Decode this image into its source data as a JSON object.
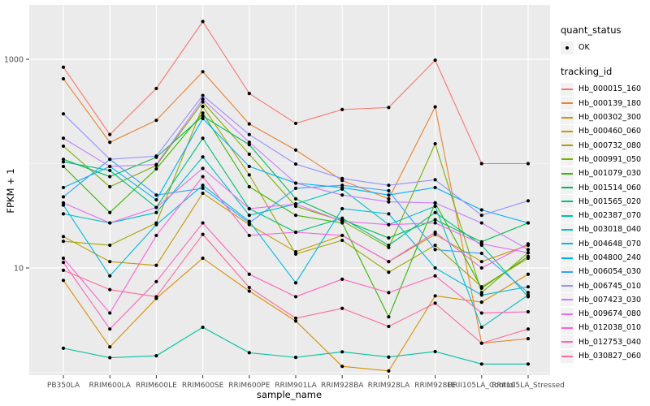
{
  "chart_data": {
    "type": "line",
    "title": "",
    "xlabel": "sample_name",
    "ylabel": "FPKM + 1",
    "y_scale": "log10",
    "ylim": [
      0.94,
      3200
    ],
    "grid": "on",
    "legend_position": "right",
    "panel_color": "#EBEBEB",
    "grid_color": "#FFFFFF",
    "point_color": "#000000",
    "tick_text_color": "#4D4D4D",
    "y_ticks": [
      {
        "value": 10,
        "label": "10"
      },
      {
        "value": 1000,
        "label": "1000"
      }
    ],
    "y_minor": [
      1,
      100
    ],
    "categories": [
      "PB350LA",
      "RRIM600LA",
      "RRIM600LE",
      "RRIM600SE",
      "RRIM600PE",
      "RRIM901LA",
      "RRIM928BA",
      "RRIM928LA",
      "RRIM928LE",
      "RRII105LA_Control",
      "RRII105LA_Stressed"
    ],
    "series": [
      {
        "name": "Hb_000015_160",
        "color": "#F8766D",
        "values": [
          840,
          190,
          525,
          2300,
          470,
          243,
          330,
          345,
          980,
          100,
          100
        ]
      },
      {
        "name": "Hb_000139_180",
        "color": "#EA8331",
        "values": [
          650,
          160,
          260,
          760,
          240,
          135,
          69,
          46,
          350,
          1.9,
          2.1
        ]
      },
      {
        "name": "Hb_000302_300",
        "color": "#D89000",
        "values": [
          7.6,
          1.75,
          5.1,
          12.4,
          6.0,
          3.1,
          1.14,
          1.03,
          5.4,
          4.7,
          8.7
        ]
      },
      {
        "name": "Hb_000460_060",
        "color": "#C09B00",
        "values": [
          20,
          11.5,
          10.6,
          52,
          26,
          14.3,
          20.5,
          11.5,
          21,
          11.5,
          16.5
        ]
      },
      {
        "name": "Hb_000732_080",
        "color": "#A3A500",
        "values": [
          18,
          16.5,
          27,
          353,
          78,
          13.6,
          18.4,
          9.1,
          16.5,
          6.6,
          12.4
        ]
      },
      {
        "name": "Hb_000991_050",
        "color": "#7CAE00",
        "values": [
          147,
          60,
          96,
          390,
          123,
          39,
          28.3,
          15.7,
          155,
          5.8,
          14
        ]
      },
      {
        "name": "Hb_001079_030",
        "color": "#39B600",
        "values": [
          94,
          34,
          89,
          305,
          60,
          32,
          27,
          3.4,
          42,
          6.4,
          12.9
        ]
      },
      {
        "name": "Hb_001514_060",
        "color": "#00BB4E",
        "values": [
          110,
          75,
          115,
          285,
          152,
          46,
          29,
          19.4,
          29,
          17.8,
          27
        ]
      },
      {
        "name": "Hb_001565_020",
        "color": "#00BF7D",
        "values": [
          104,
          86,
          38,
          175,
          37,
          22,
          30,
          16.5,
          34,
          16.5,
          5.3
        ]
      },
      {
        "name": "Hb_002387_070",
        "color": "#00C1A3",
        "values": [
          1.7,
          1.38,
          1.44,
          2.7,
          1.54,
          1.39,
          1.57,
          1.4,
          1.58,
          1.2,
          1.2
        ]
      },
      {
        "name": "Hb_003018_040",
        "color": "#00BFC4",
        "values": [
          33,
          27,
          34,
          116,
          32,
          41,
          57,
          26,
          39,
          2.7,
          5.5
        ]
      },
      {
        "name": "Hb_004648_070",
        "color": "#00BAE0",
        "values": [
          40,
          8.4,
          26,
          62,
          28,
          7.2,
          37,
          33,
          10,
          5.5,
          6.6
        ]
      },
      {
        "name": "Hb_004800_240",
        "color": "#00B0F6",
        "values": [
          59,
          94,
          45,
          270,
          94,
          65,
          59,
          50,
          59,
          36,
          27
        ]
      },
      {
        "name": "Hb_006054_030",
        "color": "#35A2FF",
        "values": [
          48,
          110,
          50,
          58,
          27,
          58,
          62,
          55,
          15,
          13.8,
          5.8
        ]
      },
      {
        "name": "Hb_006745_010",
        "color": "#9590FF",
        "values": [
          300,
          110,
          118,
          450,
          190,
          99,
          72,
          62,
          70,
          32,
          44
        ]
      },
      {
        "name": "Hb_007423_030",
        "color": "#C77CFF",
        "values": [
          175,
          94,
          98,
          415,
          160,
          65,
          50,
          43,
          42,
          27,
          15
        ]
      },
      {
        "name": "Hb_009674_080",
        "color": "#E76BF3",
        "values": [
          42,
          27,
          38,
          90,
          37,
          41,
          28,
          26,
          27,
          17,
          14
        ]
      },
      {
        "name": "Hb_012038_010",
        "color": "#FA62DB",
        "values": [
          12.4,
          3.7,
          20.5,
          75,
          20.5,
          22,
          20.5,
          11.5,
          22,
          10,
          17
        ]
      },
      {
        "name": "Hb_012753_040",
        "color": "#FF62BC",
        "values": [
          11.3,
          2.6,
          7.4,
          27,
          8.7,
          5.3,
          7.8,
          5.8,
          8.4,
          3.7,
          3.8
        ]
      },
      {
        "name": "Hb_030827_060",
        "color": "#FF6A98",
        "values": [
          9.5,
          6.2,
          5.3,
          21,
          6.5,
          3.3,
          4.1,
          2.75,
          4.6,
          1.9,
          2.6
        ]
      }
    ],
    "legend": {
      "quant_status_title": "quant_status",
      "quant_status_items": [
        {
          "label": "OK",
          "marker": "black-point"
        }
      ],
      "tracking_title": "tracking_id"
    }
  }
}
